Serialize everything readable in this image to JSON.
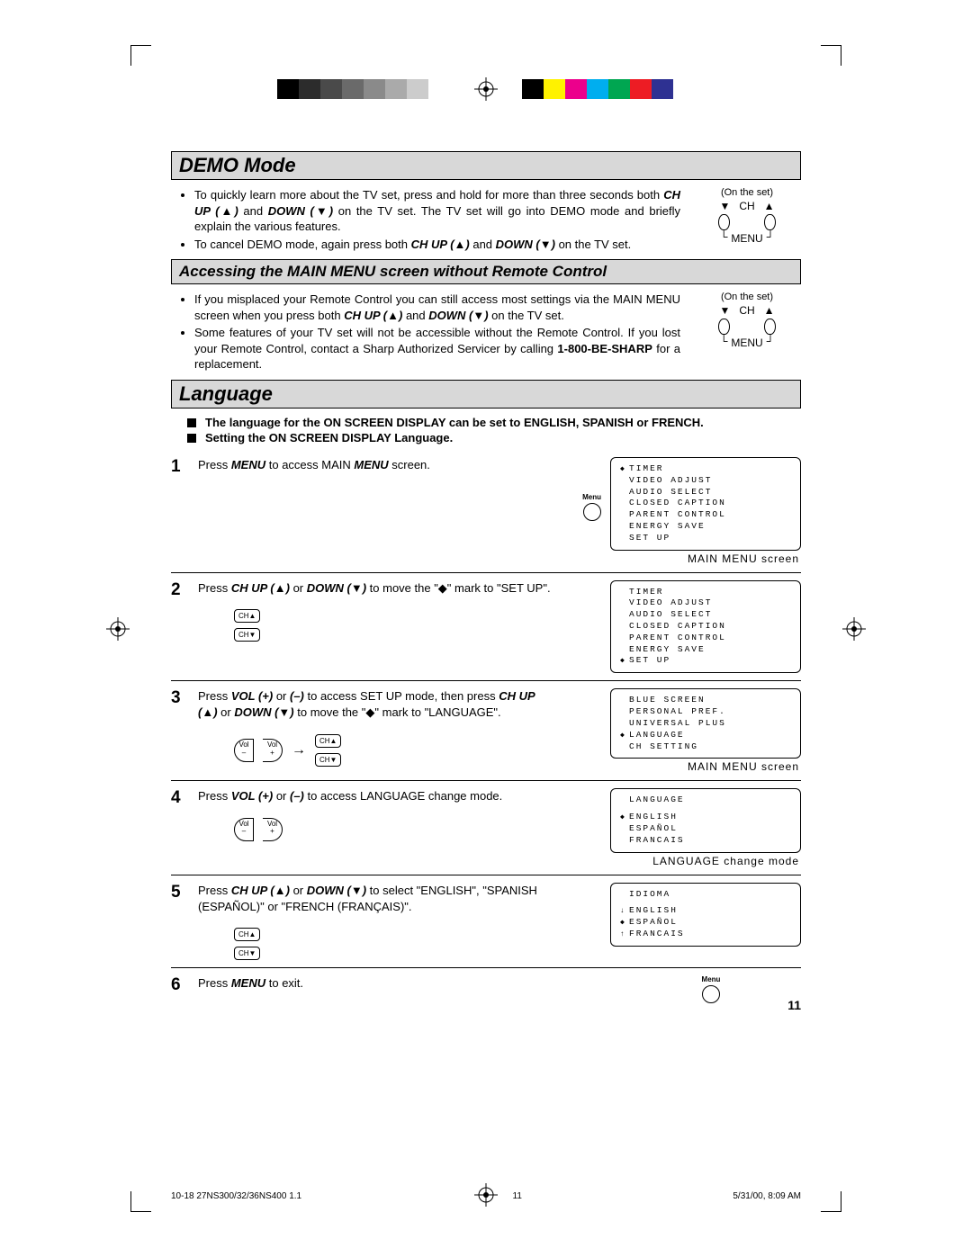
{
  "colorbar": [
    "#000000",
    "#2c2c2c",
    "#4a4a4a",
    "#6a6a6a",
    "#8a8a8a",
    "#aaaaaa",
    "#cccccc",
    "#ffffff",
    "#000000",
    "#fff200",
    "#ec008c",
    "#00aeef",
    "#00a651",
    "#ed1c24",
    "#2e3192",
    "#ffffff"
  ],
  "sections": {
    "demo_title": "DEMO Mode",
    "demo_bullets": [
      "To quickly learn more about the TV set, press and hold for more than three seconds both CH UP (▲) and DOWN (▼) on the TV set. The TV set will go into DEMO mode and briefly explain the various features.",
      "To cancel DEMO mode, again press both CH UP (▲) and DOWN (▼) on the TV set."
    ],
    "access_title": "Accessing the MAIN MENU screen without Remote Control",
    "access_bullets": [
      "If you misplaced your Remote Control you can still access most settings via the MAIN MENU screen when you press both CH UP (▲) and DOWN (▼) on the TV set.",
      "Some features of your TV set will not be accessible without the Remote Control. If you lost your Remote Control, contact a Sharp Authorized Servicer by calling 1-800-BE-SHARP for a replacement."
    ],
    "lang_title": "Language",
    "lang_intro": [
      "The language for the ON SCREEN DISPLAY can be set to ENGLISH, SPANISH or FRENCH.",
      "Setting the ON SCREEN DISPLAY Language."
    ],
    "onset_label": "(On the set)",
    "ch_label": "CH",
    "menu_label": "MENU"
  },
  "steps": [
    {
      "n": "1",
      "text": "Press MENU to access MAIN MENU screen.",
      "caption": "MAIN MENU screen",
      "menu": true,
      "osd": [
        {
          "t": "TIMER",
          "m": true
        },
        {
          "t": "VIDEO ADJUST"
        },
        {
          "t": "AUDIO SELECT"
        },
        {
          "t": "CLOSED CAPTION"
        },
        {
          "t": "PARENT CONTROL"
        },
        {
          "t": "ENERGY SAVE"
        },
        {
          "t": "SET UP"
        }
      ]
    },
    {
      "n": "2",
      "text": "Press CH UP (▲) or DOWN (▼) to move the \"◆\" mark to \"SET UP\".",
      "ch": true,
      "osd": [
        {
          "t": "TIMER"
        },
        {
          "t": "VIDEO ADJUST"
        },
        {
          "t": "AUDIO SELECT"
        },
        {
          "t": "CLOSED CAPTION"
        },
        {
          "t": "PARENT CONTROL"
        },
        {
          "t": "ENERGY SAVE"
        },
        {
          "t": "SET UP",
          "m": true
        }
      ]
    },
    {
      "n": "3",
      "text": "Press VOL (+) or (–) to access SET UP mode, then press CH UP (▲) or DOWN (▼) to move the \"◆\" mark to \"LANGUAGE\".",
      "caption": "MAIN MENU screen",
      "vol": true,
      "ch": true,
      "arrow": true,
      "osd": [
        {
          "t": "BLUE SCREEN"
        },
        {
          "t": "PERSONAL PREF."
        },
        {
          "t": "UNIVERSAL PLUS"
        },
        {
          "t": "LANGUAGE",
          "m": true
        },
        {
          "t": "CH SETTING"
        }
      ]
    },
    {
      "n": "4",
      "text": "Press VOL (+) or (–) to access LANGUAGE change mode.",
      "caption": "LANGUAGE change mode",
      "vol": true,
      "osd": [
        {
          "t": "LANGUAGE",
          "head": true
        },
        {
          "t": "ENGLISH",
          "m": true
        },
        {
          "t": "ESPAÑOL"
        },
        {
          "t": "FRANCAIS"
        }
      ]
    },
    {
      "n": "5",
      "text": "Press CH UP (▲) or DOWN (▼) to select \"ENGLISH\", \"SPANISH (ESPAÑOL)\" or \"FRENCH (FRANÇAIS)\".",
      "ch": true,
      "osd": [
        {
          "t": "IDIOMA",
          "head": true
        },
        {
          "t": "ENGLISH",
          "pre": "↓"
        },
        {
          "t": "ESPAÑOL",
          "m": true
        },
        {
          "t": "FRANCAIS",
          "pre": "↑"
        }
      ]
    },
    {
      "n": "6",
      "text": "Press MENU to exit.",
      "menu": true
    }
  ],
  "buttons": {
    "menu": "Menu",
    "chup": "CH▲",
    "chdn": "CH▼",
    "volm": "Vol\n–",
    "volp": "Vol\n+"
  },
  "page_number": "11",
  "footer": {
    "left": "10-18 27NS300/32/36NS400 1.1",
    "mid": "11",
    "right": "5/31/00, 8:09 AM"
  }
}
